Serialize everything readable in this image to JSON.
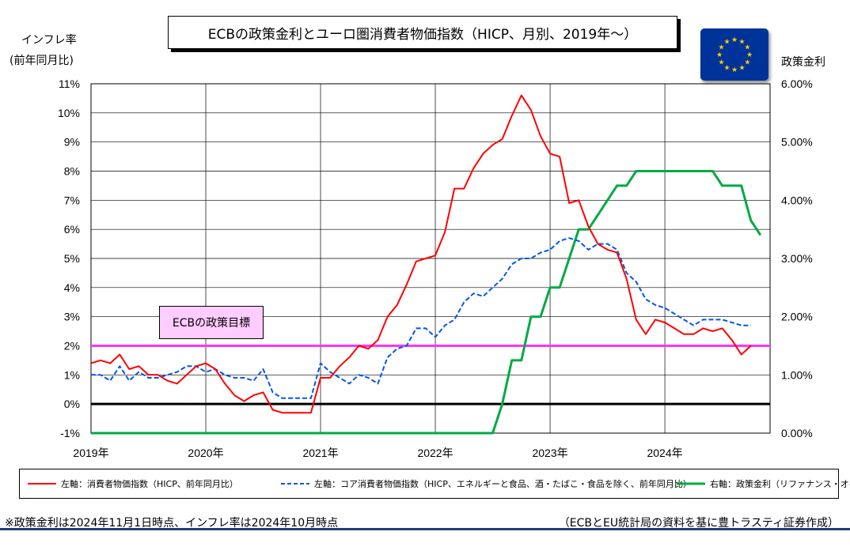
{
  "title": "ECBの政策金利とユーロ圏消費者物価指数（HICP、月別、2019年～）",
  "left_axis_label": [
    "インフレ率",
    "(前年同月比)"
  ],
  "right_axis_label": "政策金利",
  "target_label": "ECBの政策目標",
  "footnote": "※政策金利は2024年11月1日時点、インフレ率は2024年10月時点",
  "source": "（ECBとEU統計局の資料を基に豊トラスティ証券作成）",
  "colors": {
    "hicp": "#ff0000",
    "core": "#0055ee",
    "rate": "#00aa44",
    "target": "#ff33ff",
    "zero": "#000000",
    "flag": "#003399",
    "stars": "#ffcc00"
  },
  "icons": {
    "flag": "eu-flag-icon"
  },
  "chart_data": {
    "type": "line",
    "x_start": "2019-01",
    "x_end": "2024-12",
    "x_tick_labels": [
      "2019年",
      "2020年",
      "2021年",
      "2022年",
      "2023年",
      "2024年"
    ],
    "y_left": {
      "min": -1,
      "max": 11,
      "step": 1,
      "ticks": [
        "-1%",
        "0%",
        "1%",
        "2%",
        "3%",
        "4%",
        "5%",
        "6%",
        "7%",
        "8%",
        "9%",
        "10%",
        "11%"
      ]
    },
    "y_right": {
      "min": 0,
      "max": 6,
      "step": 1,
      "ticks": [
        "0.00%",
        "1.00%",
        "2.00%",
        "3.00%",
        "4.00%",
        "5.00%",
        "6.00%"
      ]
    },
    "grid": true,
    "target_value": 2,
    "series": [
      {
        "name": "左軸：消費者物価指数（HICP、前年同月比）",
        "axis": "left",
        "style": "solid",
        "color": "#ff0000",
        "points": [
          [
            "2019-01",
            1.4
          ],
          [
            "2019-02",
            1.5
          ],
          [
            "2019-03",
            1.4
          ],
          [
            "2019-04",
            1.7
          ],
          [
            "2019-05",
            1.2
          ],
          [
            "2019-06",
            1.3
          ],
          [
            "2019-07",
            1.0
          ],
          [
            "2019-08",
            1.0
          ],
          [
            "2019-09",
            0.8
          ],
          [
            "2019-10",
            0.7
          ],
          [
            "2019-11",
            1.0
          ],
          [
            "2019-12",
            1.3
          ],
          [
            "2020-01",
            1.4
          ],
          [
            "2020-02",
            1.2
          ],
          [
            "2020-03",
            0.7
          ],
          [
            "2020-04",
            0.3
          ],
          [
            "2020-05",
            0.1
          ],
          [
            "2020-06",
            0.3
          ],
          [
            "2020-07",
            0.4
          ],
          [
            "2020-08",
            -0.2
          ],
          [
            "2020-09",
            -0.3
          ],
          [
            "2020-10",
            -0.3
          ],
          [
            "2020-11",
            -0.3
          ],
          [
            "2020-12",
            -0.3
          ],
          [
            "2021-01",
            0.9
          ],
          [
            "2021-02",
            0.9
          ],
          [
            "2021-03",
            1.3
          ],
          [
            "2021-04",
            1.6
          ],
          [
            "2021-05",
            2.0
          ],
          [
            "2021-06",
            1.9
          ],
          [
            "2021-07",
            2.2
          ],
          [
            "2021-08",
            3.0
          ],
          [
            "2021-09",
            3.4
          ],
          [
            "2021-10",
            4.1
          ],
          [
            "2021-11",
            4.9
          ],
          [
            "2021-12",
            5.0
          ],
          [
            "2022-01",
            5.1
          ],
          [
            "2022-02",
            5.9
          ],
          [
            "2022-03",
            7.4
          ],
          [
            "2022-04",
            7.4
          ],
          [
            "2022-05",
            8.1
          ],
          [
            "2022-06",
            8.6
          ],
          [
            "2022-07",
            8.9
          ],
          [
            "2022-08",
            9.1
          ],
          [
            "2022-09",
            9.9
          ],
          [
            "2022-10",
            10.6
          ],
          [
            "2022-11",
            10.1
          ],
          [
            "2022-12",
            9.2
          ],
          [
            "2023-01",
            8.6
          ],
          [
            "2023-02",
            8.5
          ],
          [
            "2023-03",
            6.9
          ],
          [
            "2023-04",
            7.0
          ],
          [
            "2023-05",
            6.1
          ],
          [
            "2023-06",
            5.5
          ],
          [
            "2023-07",
            5.3
          ],
          [
            "2023-08",
            5.2
          ],
          [
            "2023-09",
            4.3
          ],
          [
            "2023-10",
            2.9
          ],
          [
            "2023-11",
            2.4
          ],
          [
            "2023-12",
            2.9
          ],
          [
            "2024-01",
            2.8
          ],
          [
            "2024-02",
            2.6
          ],
          [
            "2024-03",
            2.4
          ],
          [
            "2024-04",
            2.4
          ],
          [
            "2024-05",
            2.6
          ],
          [
            "2024-06",
            2.5
          ],
          [
            "2024-07",
            2.6
          ],
          [
            "2024-08",
            2.2
          ],
          [
            "2024-09",
            1.7
          ],
          [
            "2024-10",
            2.0
          ]
        ]
      },
      {
        "name": "左軸：コア消費者物価指数（HICP、エネルギーと食品、酒・たばこ・食品を除く、前年同月比）",
        "axis": "left",
        "style": "dashed",
        "color": "#0055ee",
        "points": [
          [
            "2019-01",
            1.0
          ],
          [
            "2019-02",
            1.0
          ],
          [
            "2019-03",
            0.8
          ],
          [
            "2019-04",
            1.3
          ],
          [
            "2019-05",
            0.8
          ],
          [
            "2019-06",
            1.1
          ],
          [
            "2019-07",
            0.9
          ],
          [
            "2019-08",
            0.9
          ],
          [
            "2019-09",
            1.0
          ],
          [
            "2019-10",
            1.1
          ],
          [
            "2019-11",
            1.3
          ],
          [
            "2019-12",
            1.3
          ],
          [
            "2020-01",
            1.1
          ],
          [
            "2020-02",
            1.2
          ],
          [
            "2020-03",
            1.0
          ],
          [
            "2020-04",
            0.9
          ],
          [
            "2020-05",
            0.9
          ],
          [
            "2020-06",
            0.8
          ],
          [
            "2020-07",
            1.2
          ],
          [
            "2020-08",
            0.4
          ],
          [
            "2020-09",
            0.2
          ],
          [
            "2020-10",
            0.2
          ],
          [
            "2020-11",
            0.2
          ],
          [
            "2020-12",
            0.2
          ],
          [
            "2021-01",
            1.4
          ],
          [
            "2021-02",
            1.1
          ],
          [
            "2021-03",
            0.9
          ],
          [
            "2021-04",
            0.7
          ],
          [
            "2021-05",
            1.0
          ],
          [
            "2021-06",
            0.9
          ],
          [
            "2021-07",
            0.7
          ],
          [
            "2021-08",
            1.6
          ],
          [
            "2021-09",
            1.9
          ],
          [
            "2021-10",
            2.0
          ],
          [
            "2021-11",
            2.6
          ],
          [
            "2021-12",
            2.6
          ],
          [
            "2022-01",
            2.3
          ],
          [
            "2022-02",
            2.7
          ],
          [
            "2022-03",
            2.9
          ],
          [
            "2022-04",
            3.5
          ],
          [
            "2022-05",
            3.8
          ],
          [
            "2022-06",
            3.7
          ],
          [
            "2022-07",
            4.0
          ],
          [
            "2022-08",
            4.3
          ],
          [
            "2022-09",
            4.8
          ],
          [
            "2022-10",
            5.0
          ],
          [
            "2022-11",
            5.0
          ],
          [
            "2022-12",
            5.2
          ],
          [
            "2023-01",
            5.3
          ],
          [
            "2023-02",
            5.6
          ],
          [
            "2023-03",
            5.7
          ],
          [
            "2023-04",
            5.6
          ],
          [
            "2023-05",
            5.3
          ],
          [
            "2023-06",
            5.5
          ],
          [
            "2023-07",
            5.5
          ],
          [
            "2023-08",
            5.3
          ],
          [
            "2023-09",
            4.5
          ],
          [
            "2023-10",
            4.2
          ],
          [
            "2023-11",
            3.6
          ],
          [
            "2023-12",
            3.4
          ],
          [
            "2024-01",
            3.3
          ],
          [
            "2024-02",
            3.1
          ],
          [
            "2024-03",
            2.9
          ],
          [
            "2024-04",
            2.7
          ],
          [
            "2024-05",
            2.9
          ],
          [
            "2024-06",
            2.9
          ],
          [
            "2024-07",
            2.9
          ],
          [
            "2024-08",
            2.8
          ],
          [
            "2024-09",
            2.7
          ],
          [
            "2024-10",
            2.7
          ]
        ]
      },
      {
        "name": "右軸：政策金利（リファナンス・オペ）",
        "axis": "right",
        "style": "solid",
        "color": "#00aa44",
        "points": [
          [
            "2019-01",
            0.0
          ],
          [
            "2022-07",
            0.0
          ],
          [
            "2022-08",
            0.5
          ],
          [
            "2022-09",
            1.25
          ],
          [
            "2022-10",
            1.25
          ],
          [
            "2022-11",
            2.0
          ],
          [
            "2022-12",
            2.0
          ],
          [
            "2023-01",
            2.5
          ],
          [
            "2023-02",
            2.5
          ],
          [
            "2023-03",
            3.0
          ],
          [
            "2023-04",
            3.5
          ],
          [
            "2023-05",
            3.5
          ],
          [
            "2023-06",
            3.75
          ],
          [
            "2023-07",
            4.0
          ],
          [
            "2023-08",
            4.25
          ],
          [
            "2023-09",
            4.25
          ],
          [
            "2023-10",
            4.5
          ],
          [
            "2024-06",
            4.5
          ],
          [
            "2024-07",
            4.25
          ],
          [
            "2024-08",
            4.25
          ],
          [
            "2024-09",
            4.25
          ],
          [
            "2024-10",
            3.65
          ],
          [
            "2024-11",
            3.4
          ]
        ]
      }
    ]
  }
}
